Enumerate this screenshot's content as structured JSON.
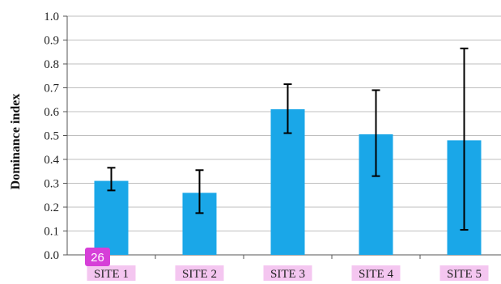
{
  "chart_data": {
    "type": "bar",
    "ylabel": "Dominance index",
    "xlabel": "",
    "ylim": [
      0,
      1.0
    ],
    "yticks": [
      "0.0",
      "0.1",
      "0.2",
      "0.3",
      "0.4",
      "0.5",
      "0.6",
      "0.7",
      "0.8",
      "0.9",
      "1.0"
    ],
    "categories": [
      "SITE 1",
      "SITE 2",
      "SITE 3",
      "SITE 4",
      "SITE 5"
    ],
    "values": [
      0.31,
      0.26,
      0.61,
      0.505,
      0.48
    ],
    "error_low": [
      0.27,
      0.175,
      0.51,
      0.33,
      0.105
    ],
    "error_high": [
      0.365,
      0.355,
      0.715,
      0.69,
      0.865
    ],
    "grid": true,
    "bar_color": "#1aa7e8",
    "category_highlight_color": "#f4c6f0"
  },
  "badge": {
    "text": "26",
    "color": "#d63fd8"
  }
}
